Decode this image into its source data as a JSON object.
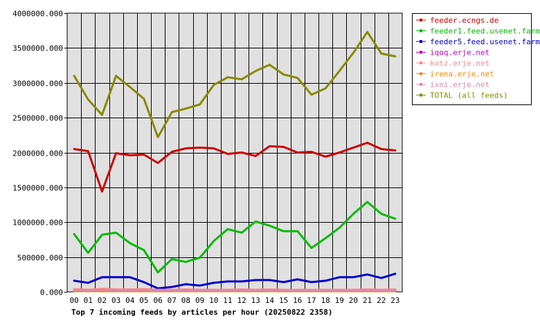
{
  "chart_data": {
    "type": "line",
    "title": "Top 7 incoming feeds by articles per hour (20250822 2358)",
    "xlabel": "",
    "ylabel": "",
    "ylim": [
      0,
      4000000
    ],
    "yticks": [
      "0.000",
      "500000.000",
      "1000000.000",
      "1500000.000",
      "2000000.000",
      "2500000.000",
      "3000000.000",
      "3500000.000",
      "4000000.000"
    ],
    "x": [
      "00",
      "01",
      "02",
      "03",
      "04",
      "05",
      "06",
      "07",
      "08",
      "09",
      "10",
      "11",
      "12",
      "13",
      "14",
      "15",
      "16",
      "17",
      "18",
      "19",
      "20",
      "21",
      "22",
      "23"
    ],
    "grid": true,
    "legend_position": "right",
    "background": "#e0e0e0",
    "series": [
      {
        "name": "feeder.ecngs.de",
        "color": "#cc0000",
        "values": [
          2050000,
          2020000,
          1440000,
          1990000,
          1960000,
          1970000,
          1850000,
          2010000,
          2060000,
          2070000,
          2060000,
          1980000,
          2000000,
          1950000,
          2090000,
          2080000,
          2000000,
          2010000,
          1940000,
          2000000,
          2070000,
          2140000,
          2050000,
          2030000
        ]
      },
      {
        "name": "feeder1.feed.usenet.farm",
        "color": "#00bb00",
        "values": [
          830000,
          560000,
          820000,
          850000,
          700000,
          600000,
          280000,
          470000,
          430000,
          490000,
          730000,
          900000,
          850000,
          1010000,
          950000,
          870000,
          870000,
          630000,
          770000,
          920000,
          1120000,
          1290000,
          1120000,
          1050000
        ]
      },
      {
        "name": "feeder5.feed.usenet.farm",
        "color": "#0000cc",
        "values": [
          160000,
          130000,
          210000,
          210000,
          210000,
          140000,
          50000,
          70000,
          110000,
          90000,
          130000,
          150000,
          150000,
          170000,
          170000,
          140000,
          180000,
          140000,
          160000,
          210000,
          210000,
          250000,
          200000,
          260000
        ]
      },
      {
        "name": "iqoq.erje.net",
        "color": "#bb00bb",
        "values": [
          20000,
          20000,
          20000,
          20000,
          20000,
          20000,
          20000,
          20000,
          20000,
          20000,
          20000,
          20000,
          20000,
          20000,
          20000,
          20000,
          20000,
          20000,
          20000,
          20000,
          20000,
          20000,
          20000,
          20000
        ]
      },
      {
        "name": "kotz.erje.net",
        "color": "#ff8888",
        "values": [
          40000,
          30000,
          45000,
          35000,
          35000,
          40000,
          30000,
          30000,
          35000,
          30000,
          30000,
          30000,
          35000,
          30000,
          35000,
          30000,
          30000,
          30000,
          30000,
          30000,
          30000,
          35000,
          30000,
          35000
        ]
      },
      {
        "name": "irena.erje.net",
        "color": "#ff8800",
        "values": [
          10000,
          10000,
          10000,
          10000,
          10000,
          10000,
          10000,
          10000,
          10000,
          10000,
          10000,
          10000,
          10000,
          10000,
          10000,
          10000,
          10000,
          10000,
          10000,
          10000,
          10000,
          10000,
          10000,
          10000
        ]
      },
      {
        "name": "ixni.erje.net",
        "color": "#dd88aa",
        "values": [
          30000,
          20000,
          30000,
          25000,
          25000,
          30000,
          20000,
          20000,
          25000,
          20000,
          20000,
          20000,
          25000,
          20000,
          25000,
          20000,
          20000,
          20000,
          20000,
          20000,
          20000,
          25000,
          20000,
          25000
        ]
      },
      {
        "name": "TOTAL (all feeds)",
        "color": "#888800",
        "values": [
          3100000,
          2760000,
          2540000,
          3100000,
          2940000,
          2770000,
          2220000,
          2580000,
          2630000,
          2690000,
          2970000,
          3080000,
          3050000,
          3170000,
          3260000,
          3120000,
          3070000,
          2830000,
          2920000,
          3170000,
          3430000,
          3730000,
          3420000,
          3380000
        ]
      }
    ]
  }
}
